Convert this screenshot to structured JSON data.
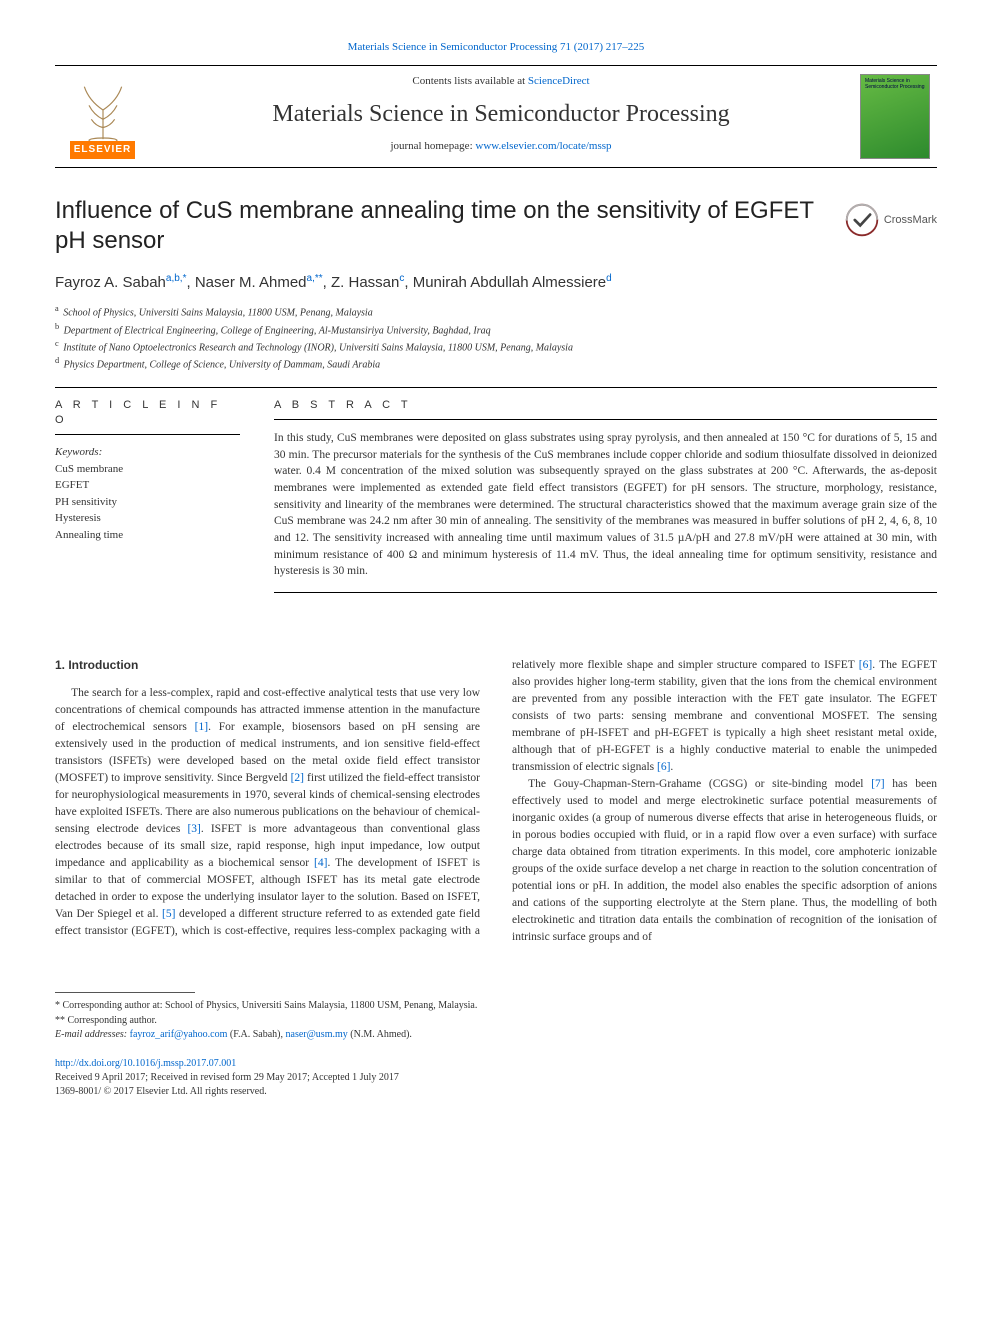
{
  "colors": {
    "link": "#0066cc",
    "text": "#333333",
    "elsevier_orange": "#ff7a00",
    "cover_green1": "#66bb44",
    "cover_green2": "#2d8a2d"
  },
  "typography": {
    "body_size_pt": 9,
    "title_size_pt": 18,
    "journal_size_pt": 18,
    "author_size_pt": 11
  },
  "header": {
    "citation_prefix": "Materials Science in Semiconductor Processing 71 (2017) 217–225",
    "contents_prefix": "Contents lists available at ",
    "contents_link": "ScienceDirect",
    "journal_name": "Materials Science in Semiconductor Processing",
    "homepage_prefix": "journal homepage: ",
    "homepage_link": "www.elsevier.com/locate/mssp",
    "elsevier_label": "ELSEVIER",
    "cover_text": "Materials Science in Semiconductor Processing"
  },
  "crossmark_label": "CrossMark",
  "article": {
    "title": "Influence of CuS membrane annealing time on the sensitivity of EGFET pH sensor",
    "authors_html": "Fayroz A. Sabah<sup>a,b,*</sup>, Naser M. Ahmed<sup>a,**</sup>, Z. Hassan<sup>c</sup>, Munirah Abdullah Almessiere<sup>d</sup>",
    "affiliations": [
      {
        "key": "a",
        "text": "School of Physics, Universiti Sains Malaysia, 11800 USM, Penang, Malaysia"
      },
      {
        "key": "b",
        "text": "Department of Electrical Engineering, College of Engineering, Al-Mustansiriya University, Baghdad, Iraq"
      },
      {
        "key": "c",
        "text": "Institute of Nano Optoelectronics Research and Technology (INOR), Universiti Sains Malaysia, 11800 USM, Penang, Malaysia"
      },
      {
        "key": "d",
        "text": "Physics Department, College of Science, University of Dammam, Saudi Arabia"
      }
    ]
  },
  "info": {
    "label": "A R T I C L E  I N F O",
    "keywords_label": "Keywords:",
    "keywords": [
      "CuS membrane",
      "EGFET",
      "PH sensitivity",
      "Hysteresis",
      "Annealing time"
    ]
  },
  "abstract": {
    "label": "A B S T R A C T",
    "text": "In this study, CuS membranes were deposited on glass substrates using spray pyrolysis, and then annealed at 150 °C for durations of 5, 15 and 30 min. The precursor materials for the synthesis of the CuS membranes include copper chloride and sodium thiosulfate dissolved in deionized water. 0.4 M concentration of the mixed solution was subsequently sprayed on the glass substrates at 200 °C. Afterwards, the as-deposit membranes were implemented as extended gate field effect transistors (EGFET) for pH sensors. The structure, morphology, resistance, sensitivity and linearity of the membranes were determined. The structural characteristics showed that the maximum average grain size of the CuS membrane was 24.2 nm after 30 min of annealing. The sensitivity of the membranes was measured in buffer solutions of pH 2, 4, 6, 8, 10 and 12. The sensitivity increased with annealing time until maximum values of 31.5 µA/pH and 27.8 mV/pH were attained at 30 min, with minimum resistance of 400 Ω and minimum hysteresis of 11.4 mV. Thus, the ideal annealing time for optimum sensitivity, resistance and hysteresis is 30 min."
  },
  "body": {
    "heading": "1. Introduction",
    "p1_a": "The search for a less-complex, rapid and cost-effective analytical tests that use very low concentrations of chemical compounds has attracted immense attention in the manufacture of electrochemical sensors ",
    "p1_ref1": "[1]",
    "p1_b": ". For example, biosensors based on pH sensing are extensively used in the production of medical instruments, and ion sensitive field-effect transistors (ISFETs) were developed based on the metal oxide field effect transistor (MOSFET) to improve sensitivity. Since Bergveld ",
    "p1_ref2": "[2]",
    "p1_c": " first utilized the field-effect transistor for neurophysiological measurements in 1970, several kinds of chemical-sensing electrodes have exploited ISFETs. There are also numerous publications on the behaviour of chemical-sensing electrode devices ",
    "p1_ref3": "[3]",
    "p1_d": ". ISFET is more advantageous than conventional glass electrodes because of its small size, rapid response, high input impedance, low output impedance and applicability as a biochemical sensor ",
    "p1_ref4": "[4]",
    "p1_e": ". The development of ISFET is similar to that of commercial MOSFET, although ISFET has its metal gate electrode detached in order to expose the underlying insulator layer to the solution. Based on ISFET, Van Der Spiegel et al. ",
    "p1_ref5": "[5]",
    "p1_f": " developed a different structure referred to as extended gate field effect transistor (EGFET), which is cost-effective, requires less-complex packaging with a relatively more flexible shape and simpler structure compared to ISFET ",
    "p1_ref6a": "[6]",
    "p1_g": ". The EGFET also provides higher long-term stability, given that the ions from the chemical environment are prevented from any possible interaction with the FET gate insulator. The EGFET consists of two parts: sensing membrane and conventional MOSFET. The sensing membrane of pH-ISFET and pH-EGFET is typically a high sheet resistant metal oxide, although that of pH-EGFET is a highly conductive material to enable the unimpeded transmission of electric signals ",
    "p1_ref6b": "[6]",
    "p1_h": ".",
    "p2_a": "The Gouy-Chapman-Stern-Grahame (CGSG) or site-binding model ",
    "p2_ref7": "[7]",
    "p2_b": " has been effectively used to model and merge electrokinetic surface potential measurements of inorganic oxides (a group of numerous diverse effects that arise in heterogeneous fluids, or in porous bodies occupied with fluid, or in a rapid flow over a even surface) with surface charge data obtained from titration experiments. In this model, core amphoteric ionizable groups of the oxide surface develop a net charge in reaction to the solution concentration of potential ions or pH. In addition, the model also enables the specific adsorption of anions and cations of the supporting electrolyte at the Stern plane. Thus, the modelling of both electrokinetic and titration data entails the combination of recognition of the ionisation of intrinsic surface groups and of"
  },
  "footnotes": {
    "corr1": "* Corresponding author at: School of Physics, Universiti Sains Malaysia, 11800 USM, Penang, Malaysia.",
    "corr2": "** Corresponding author.",
    "email_prefix": "E-mail addresses: ",
    "email1": "fayroz_arif@yahoo.com",
    "email1_who": " (F.A. Sabah), ",
    "email2": "naser@usm.my",
    "email2_who": " (N.M. Ahmed)."
  },
  "footer": {
    "doi": "http://dx.doi.org/10.1016/j.mssp.2017.07.001",
    "received": "Received 9 April 2017; Received in revised form 29 May 2017; Accepted 1 July 2017",
    "copyright": "1369-8001/ © 2017 Elsevier Ltd. All rights reserved."
  }
}
